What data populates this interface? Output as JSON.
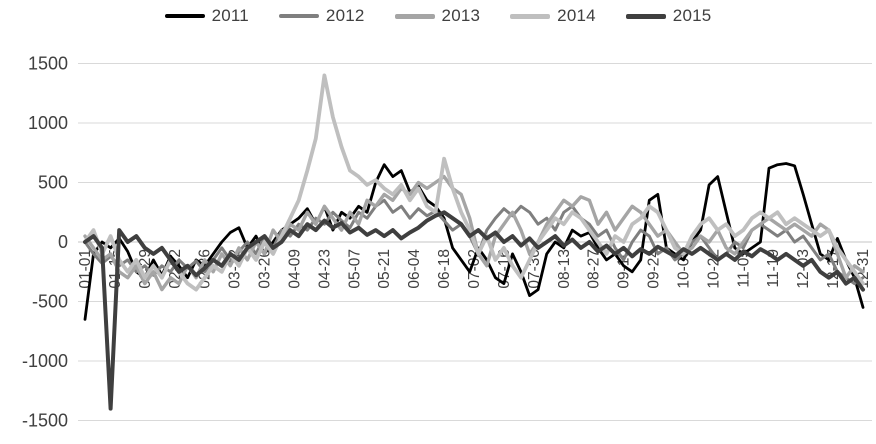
{
  "chart_data": {
    "type": "line",
    "title": "",
    "xlabel": "",
    "ylabel": "",
    "legend_position": "top",
    "grid": true,
    "background": "#ffffff",
    "gridline_color": "#d9d9d9",
    "zero_axis_color": "#c6c6c6",
    "axis_text_color": "#404040",
    "y_axis": {
      "min": -1500,
      "max": 1500,
      "tick_step": 500,
      "tick_labels": [
        "1500",
        "1000",
        "500",
        "0",
        "-500",
        "-1000",
        "-1500"
      ]
    },
    "x_axis": {
      "unit": "month-day",
      "tick_day_interval": 14,
      "tick_labels": [
        "01-01",
        "01-15",
        "01-29",
        "02-12",
        "02-26",
        "03-12",
        "03-26",
        "04-09",
        "04-23",
        "05-07",
        "05-21",
        "06-04",
        "06-18",
        "07-02",
        "07-16",
        "07-30",
        "08-13",
        "08-27",
        "09-10",
        "09-24",
        "10-08",
        "10-22",
        "11-05",
        "11-19",
        "12-03",
        "12-17",
        "12-31"
      ]
    },
    "sampling": {
      "start_day": 1,
      "step_days": 4,
      "days_in_year": 365
    },
    "series": [
      {
        "name": "2011",
        "color": "#000000",
        "stroke_width": 2.8,
        "legend_swatch_height": 4,
        "values": [
          -650,
          -100,
          0,
          -50,
          30,
          -80,
          -250,
          -300,
          -150,
          -280,
          -120,
          -200,
          -300,
          -150,
          -200,
          -100,
          0,
          80,
          120,
          -50,
          50,
          -100,
          0,
          100,
          150,
          200,
          280,
          150,
          300,
          100,
          250,
          200,
          300,
          250,
          500,
          650,
          550,
          600,
          420,
          470,
          350,
          300,
          200,
          -50,
          -150,
          -250,
          -50,
          -150,
          -300,
          -350,
          -100,
          -250,
          -450,
          -400,
          -100,
          0,
          -50,
          100,
          50,
          80,
          -50,
          -150,
          -100,
          -200,
          -250,
          -150,
          350,
          400,
          -50,
          -100,
          -150,
          0,
          100,
          480,
          550,
          250,
          -50,
          -100,
          -50,
          0,
          620,
          650,
          660,
          640,
          400,
          150,
          -100,
          -150,
          30,
          -150,
          -300,
          -550
        ]
      },
      {
        "name": "2012",
        "color": "#7f7f7f",
        "stroke_width": 3,
        "legend_swatch_height": 4,
        "values": [
          0,
          -100,
          -180,
          -120,
          -200,
          -150,
          -250,
          -200,
          -280,
          -200,
          -250,
          -150,
          -220,
          -160,
          -250,
          -150,
          -50,
          -150,
          -80,
          0,
          -100,
          50,
          -50,
          100,
          50,
          150,
          100,
          200,
          150,
          250,
          180,
          120,
          250,
          200,
          300,
          350,
          250,
          300,
          200,
          280,
          220,
          260,
          180,
          100,
          150,
          50,
          -100,
          100,
          200,
          280,
          220,
          300,
          250,
          150,
          200,
          100,
          250,
          300,
          200,
          150,
          50,
          100,
          -50,
          -150,
          0,
          100,
          50,
          -100,
          -50,
          -150,
          -100,
          0,
          50,
          -50,
          -150,
          -100,
          0,
          -50,
          100,
          150,
          100,
          50,
          100,
          0,
          50,
          -50,
          -150,
          -100,
          -250,
          -300,
          -350,
          -300
        ]
      },
      {
        "name": "2013",
        "color": "#a5a5a5",
        "stroke_width": 3.4,
        "legend_swatch_height": 5,
        "values": [
          50,
          -50,
          -150,
          -100,
          -250,
          -300,
          -200,
          -350,
          -250,
          -400,
          -300,
          -350,
          -200,
          -300,
          -150,
          -250,
          -100,
          -200,
          -50,
          -150,
          0,
          -100,
          100,
          0,
          150,
          100,
          250,
          150,
          300,
          200,
          100,
          250,
          150,
          350,
          300,
          400,
          350,
          450,
          400,
          500,
          450,
          500,
          550,
          450,
          400,
          200,
          -100,
          -200,
          50,
          150,
          250,
          100,
          -100,
          0,
          150,
          250,
          350,
          300,
          380,
          350,
          150,
          250,
          100,
          200,
          300,
          250,
          150,
          50,
          100,
          0,
          -100,
          -50,
          50,
          0,
          100,
          -50,
          -100,
          0,
          100,
          150,
          200,
          150,
          100,
          150,
          100,
          50,
          150,
          100,
          -100,
          -300,
          -200,
          -250
        ]
      },
      {
        "name": "2014",
        "color": "#bfbfbf",
        "stroke_width": 3.8,
        "legend_swatch_height": 5,
        "values": [
          0,
          100,
          -100,
          50,
          -150,
          -250,
          -150,
          -300,
          -200,
          -300,
          -150,
          -250,
          -350,
          -400,
          -300,
          -200,
          -250,
          -100,
          -200,
          -50,
          -150,
          0,
          -100,
          50,
          200,
          350,
          600,
          870,
          1400,
          1050,
          800,
          600,
          550,
          480,
          520,
          450,
          400,
          480,
          350,
          450,
          300,
          250,
          700,
          450,
          250,
          100,
          -100,
          50,
          -150,
          -50,
          -200,
          -300,
          -150,
          0,
          100,
          200,
          150,
          250,
          200,
          100,
          0,
          -100,
          50,
          0,
          150,
          200,
          300,
          250,
          100,
          -50,
          -100,
          50,
          150,
          200,
          100,
          150,
          50,
          100,
          200,
          250,
          200,
          250,
          150,
          200,
          150,
          100,
          50,
          100,
          -50,
          -150,
          -250,
          -350
        ]
      },
      {
        "name": "2015",
        "color": "#3f3f3f",
        "stroke_width": 4,
        "legend_swatch_height": 5,
        "values": [
          0,
          50,
          -50,
          -1400,
          100,
          0,
          50,
          -50,
          -100,
          -50,
          -150,
          -250,
          -200,
          -280,
          -220,
          -150,
          -200,
          -100,
          -150,
          -50,
          0,
          50,
          -50,
          0,
          100,
          50,
          150,
          100,
          180,
          120,
          160,
          80,
          120,
          60,
          100,
          50,
          100,
          30,
          80,
          120,
          180,
          220,
          250,
          200,
          150,
          50,
          100,
          30,
          80,
          0,
          50,
          -30,
          30,
          -50,
          0,
          50,
          -30,
          20,
          -50,
          0,
          -80,
          -30,
          -100,
          -50,
          -120,
          -60,
          -100,
          -40,
          -80,
          -120,
          -60,
          -100,
          -50,
          -100,
          -150,
          -100,
          -150,
          -80,
          -120,
          -60,
          -100,
          -150,
          -100,
          -150,
          -200,
          -150,
          -250,
          -300,
          -250,
          -350,
          -300,
          -400
        ]
      }
    ]
  }
}
